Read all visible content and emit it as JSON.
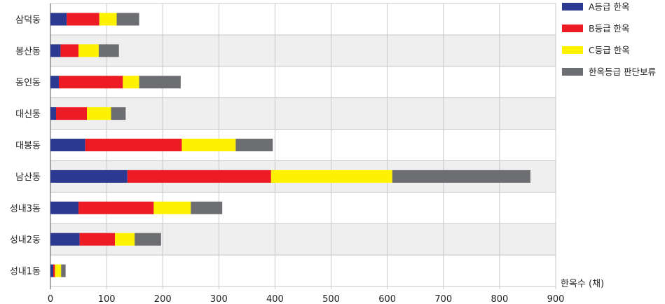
{
  "chart_data": {
    "type": "bar",
    "orientation": "horizontal",
    "stacked": true,
    "categories": [
      "삼덕동",
      "봉산동",
      "동인동",
      "대신동",
      "대봉동",
      "남산동",
      "성내3동",
      "성내2동",
      "성내1동"
    ],
    "series": [
      {
        "name": "A등급 한옥",
        "color": "#2b3990",
        "values": [
          29,
          18,
          15,
          10,
          62,
          137,
          50,
          52,
          5
        ]
      },
      {
        "name": "B등급 한옥",
        "color": "#ed1c24",
        "values": [
          58,
          32,
          114,
          55,
          172,
          256,
          134,
          63,
          3
        ]
      },
      {
        "name": "C등급 한옥",
        "color": "#fff200",
        "values": [
          31,
          36,
          29,
          43,
          96,
          216,
          66,
          35,
          11
        ]
      },
      {
        "name": "한옥등급 판단보류",
        "color": "#6d6e71",
        "values": [
          40,
          36,
          74,
          26,
          66,
          246,
          56,
          47,
          8
        ]
      }
    ],
    "xlabel": "한옥수 (채)",
    "xlim": [
      0,
      900
    ],
    "xticks": [
      0,
      100,
      200,
      300,
      400,
      500,
      600,
      700,
      800,
      900
    ],
    "grid": true,
    "legend_position": "top-right"
  }
}
